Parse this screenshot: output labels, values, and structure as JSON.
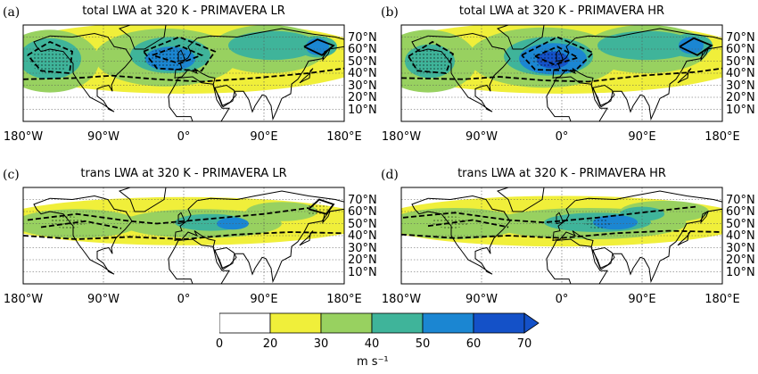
{
  "colors": {
    "bands": [
      "#ffffff",
      "#f0ef3a",
      "#98d160",
      "#3fb49a",
      "#1b86d2",
      "#1451c8"
    ],
    "land": "#000000",
    "grid": "#555555"
  },
  "panels": [
    {
      "label": "(a)",
      "title": "total LWA at 320 K - PRIMAVERA LR",
      "variant": "total-lr"
    },
    {
      "label": "(b)",
      "title": "total LWA at 320 K - PRIMAVERA HR",
      "variant": "total-hr"
    },
    {
      "label": "(c)",
      "title": "trans LWA at 320 K - PRIMAVERA LR",
      "variant": "trans-lr"
    },
    {
      "label": "(d)",
      "title": "trans LWA at 320 K - PRIMAVERA HR",
      "variant": "trans-hr"
    }
  ],
  "lat_labels": [
    "70°N",
    "60°N",
    "50°N",
    "40°N",
    "30°N",
    "20°N",
    "10°N"
  ],
  "lon_labels": [
    "180°W",
    "90°W",
    "0°",
    "90°E",
    "180°E"
  ],
  "colorbar": {
    "ticks": [
      "0",
      "20",
      "30",
      "40",
      "50",
      "60",
      "70"
    ],
    "units": "m s⁻¹",
    "extend": "max"
  }
}
